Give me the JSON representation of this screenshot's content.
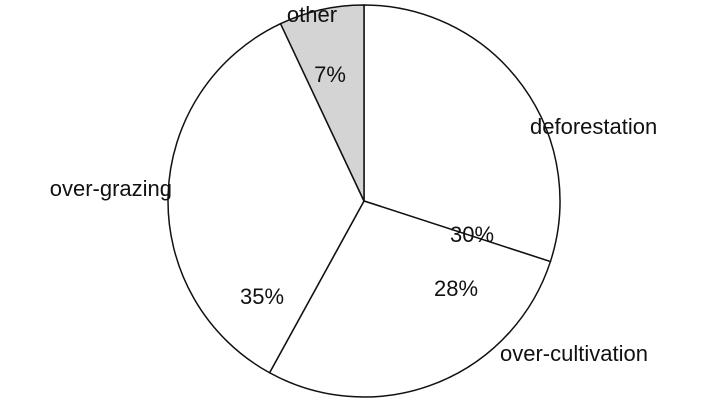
{
  "chart_data": {
    "type": "pie",
    "categories": [
      "deforestation",
      "over-cultivation",
      "over-grazing",
      "other"
    ],
    "values": [
      30,
      28,
      35,
      7
    ],
    "value_labels": [
      "30%",
      "28%",
      "35%",
      "7%"
    ],
    "colors": [
      "#ffffff",
      "#ffffff",
      "#ffffff",
      "#d4d4d4"
    ]
  }
}
